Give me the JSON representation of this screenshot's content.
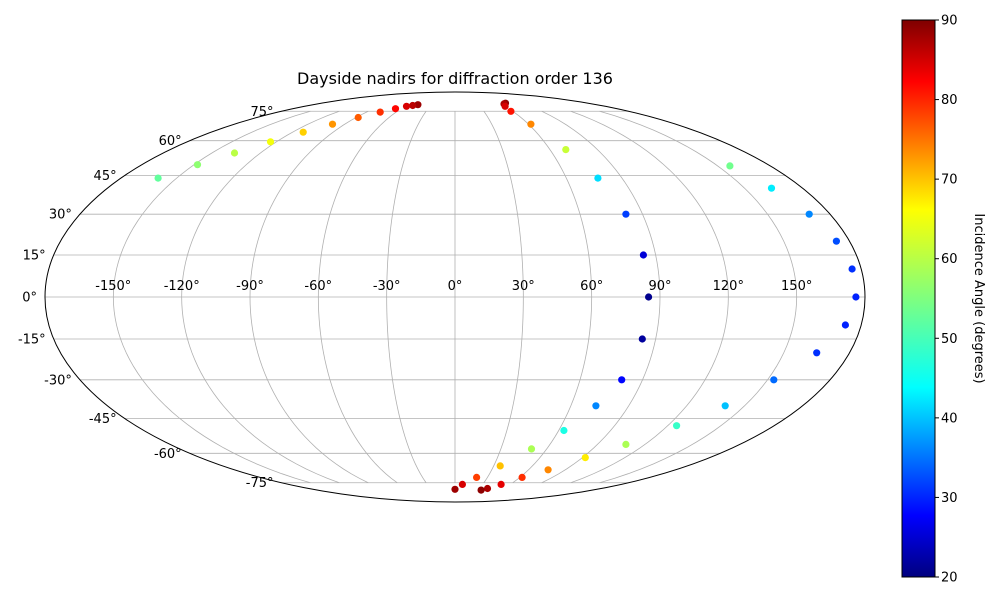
{
  "chart_data": {
    "type": "scatter",
    "projection": "mollweide",
    "title": "Dayside nadirs for diffraction order 136",
    "grid": true,
    "longitude_ticks": [
      "-150°",
      "-120°",
      "-90°",
      "-60°",
      "-30°",
      "0°",
      "30°",
      "60°",
      "90°",
      "120°",
      "150°"
    ],
    "latitude_ticks": [
      "75°",
      "60°",
      "45°",
      "30°",
      "15°",
      "0°",
      "-15°",
      "-30°",
      "-45°",
      "-60°",
      "-75°"
    ],
    "longitude_tick_values": [
      -150,
      -120,
      -90,
      -60,
      -30,
      0,
      30,
      60,
      90,
      120,
      150
    ],
    "latitude_tick_values": [
      75,
      60,
      45,
      30,
      15,
      0,
      -15,
      -30,
      -45,
      -60,
      -75
    ],
    "colorbar": {
      "label": "Incidence Angle (degrees)",
      "min": 20,
      "max": 90,
      "ticks": [
        "20",
        "30",
        "40",
        "50",
        "60",
        "70",
        "80",
        "90"
      ],
      "tick_values": [
        20,
        30,
        40,
        50,
        60,
        70,
        80,
        90
      ],
      "colormap": "jet"
    },
    "tracks": [
      {
        "x": [
          -47,
          -52,
          -58,
          -66,
          -76,
          -88,
          -100,
          -112,
          -124,
          -136,
          -148,
          -160
        ],
        "y": [
          79,
          78.5,
          78,
          76.5,
          74.5,
          71.5,
          68,
          64,
          59.5,
          54.5,
          49.5,
          44
        ],
        "values": [
          88,
          86,
          84,
          81,
          78,
          75,
          71,
          67,
          63,
          59,
          56,
          53
        ]
      },
      {
        "x": [
          68,
          64,
          60,
          58,
          62,
          70,
          77,
          82,
          84.5,
          85,
          84,
          80,
          73,
          63,
          50,
          35,
          20,
          8,
          0
        ],
        "y": [
          80,
          79.5,
          78,
          75,
          68,
          56,
          44,
          30,
          15,
          0,
          -15,
          -30,
          -40,
          -50,
          -58,
          -66,
          -72,
          -76,
          -79
        ],
        "values": [
          89,
          87,
          84,
          80,
          72,
          60,
          44,
          33,
          26,
          21,
          22,
          29,
          38,
          48,
          58,
          68,
          77,
          84,
          88
        ],
        "step": 0.8
      },
      {
        "x": [
          157,
          164,
          170,
          174,
          176,
          176,
          173,
          165,
          153,
          140,
          125,
          108,
          92,
          76,
          62,
          50,
          40,
          34
        ],
        "y": [
          49,
          40,
          30,
          20,
          10,
          0,
          -10,
          -20,
          -30,
          -40,
          -48,
          -56,
          -62,
          -68,
          -72,
          -76,
          -78.5,
          -79.5
        ],
        "values": [
          54,
          45,
          38,
          34,
          32,
          31,
          31,
          32,
          36,
          42,
          50,
          58,
          65,
          72,
          78,
          83,
          87,
          89
        ],
        "step": 0.8
      }
    ]
  }
}
